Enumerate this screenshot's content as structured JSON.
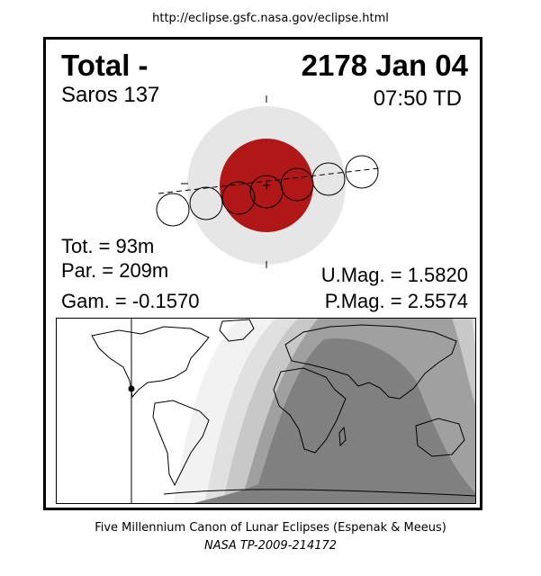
{
  "header": {
    "url": "http://eclipse.gsfc.nasa.gov/eclipse.html"
  },
  "eclipse": {
    "type": "Total  -",
    "date": "2178 Jan 04",
    "saros": "Saros 137",
    "time": "07:50 TD",
    "tot": "Tot. =  93m",
    "par": "Par. = 209m",
    "gam": "Gam. = -0.1570",
    "umag": "U.Mag. = 1.5820",
    "pmag": "P.Mag. = 2.5574"
  },
  "colors": {
    "penumbra": "#e6e6e6",
    "umbra": "#b01818",
    "map_shade_1": "#f2f2f2",
    "map_shade_2": "#e0e0e0",
    "map_shade_3": "#c8c8c8",
    "map_shade_4": "#a0a0a0",
    "map_shade_5": "#808080"
  },
  "footer": {
    "credit": "Five Millennium Canon of Lunar Eclipses (Espenak & Meeus)",
    "ref": "NASA TP-2009-214172"
  }
}
